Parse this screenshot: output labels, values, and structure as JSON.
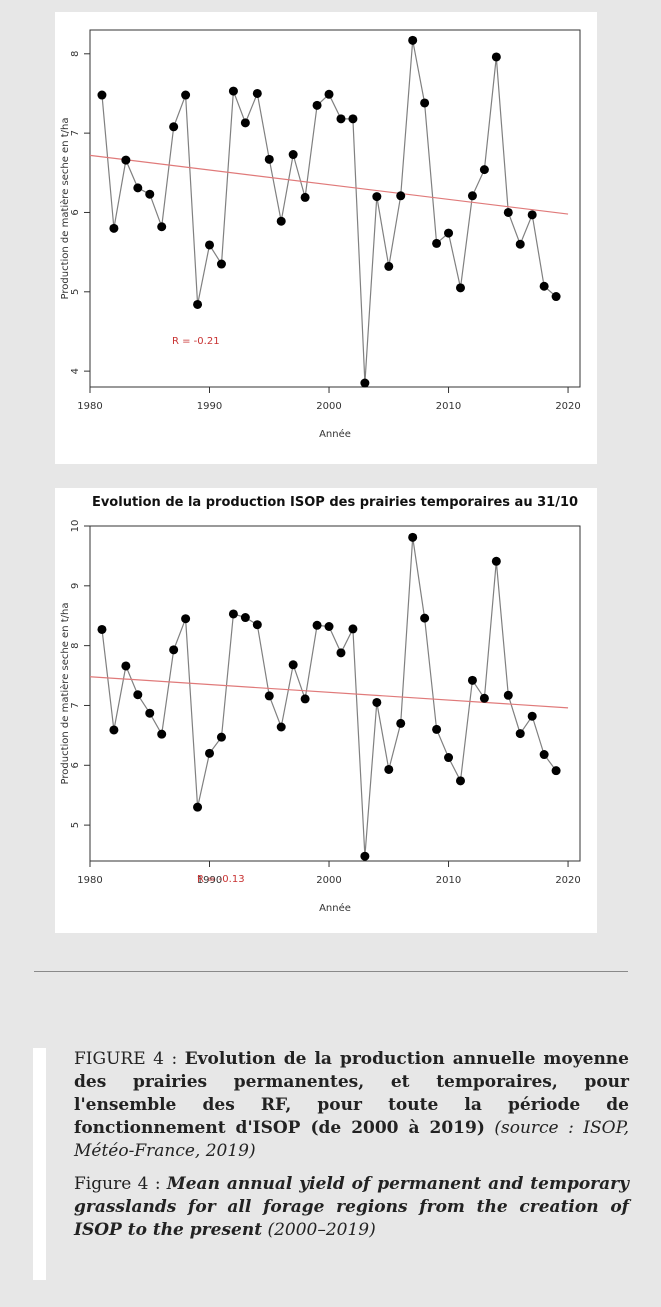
{
  "chart_data": [
    {
      "type": "line",
      "title": "",
      "xlabel": "Année",
      "ylabel": "Production de matière seche en t/ha",
      "xlim": [
        1980,
        2021
      ],
      "ylim": [
        3.8,
        8.3
      ],
      "xticks": [
        1980,
        1990,
        2000,
        2010,
        2020
      ],
      "yticks": [
        4,
        5,
        6,
        7,
        8
      ],
      "x": [
        1981,
        1982,
        1983,
        1984,
        1985,
        1986,
        1987,
        1988,
        1989,
        1990,
        1991,
        1992,
        1993,
        1994,
        1995,
        1996,
        1997,
        1998,
        1999,
        2000,
        2001,
        2002,
        2003,
        2004,
        2005,
        2006,
        2007,
        2008,
        2009,
        2010,
        2011,
        2012,
        2013,
        2014,
        2015,
        2016,
        2017,
        2018,
        2019
      ],
      "series": [
        {
          "values": [
            7.48,
            5.8,
            6.66,
            6.31,
            6.23,
            5.82,
            7.08,
            7.48,
            4.84,
            5.59,
            5.35,
            7.53,
            7.13,
            7.5,
            6.67,
            5.89,
            6.73,
            6.19,
            7.35,
            7.49,
            7.18,
            7.18,
            3.85,
            6.2,
            5.32,
            6.21,
            8.17,
            7.38,
            5.61,
            5.74,
            5.05,
            6.21,
            6.54,
            7.96,
            6.0,
            5.6,
            5.97,
            5.07,
            4.94
          ]
        }
      ],
      "trend": {
        "start": [
          1980,
          6.72
        ],
        "end": [
          2020,
          5.98
        ]
      },
      "annotation": "R = -0.21",
      "colors": {
        "series": "#808080",
        "points": "#000000",
        "trend": "#e07a7a",
        "annotation": "#c83232"
      },
      "grid": false
    },
    {
      "type": "line",
      "title": "Evolution de la production ISOP des prairies temporaires au 31/10",
      "xlabel": "Année",
      "ylabel": "Production de matière seche en t/ha",
      "xlim": [
        1980,
        2021
      ],
      "ylim": [
        4.4,
        10.0
      ],
      "xticks": [
        1980,
        1990,
        2000,
        2010,
        2020
      ],
      "yticks": [
        5,
        6,
        7,
        8,
        9,
        10
      ],
      "x": [
        1981,
        1982,
        1983,
        1984,
        1985,
        1986,
        1987,
        1988,
        1989,
        1990,
        1991,
        1992,
        1993,
        1994,
        1995,
        1996,
        1997,
        1998,
        1999,
        2000,
        2001,
        2002,
        2003,
        2004,
        2005,
        2006,
        2007,
        2008,
        2009,
        2010,
        2011,
        2012,
        2013,
        2014,
        2015,
        2016,
        2017,
        2018,
        2019
      ],
      "series": [
        {
          "values": [
            8.27,
            6.59,
            7.66,
            7.18,
            6.87,
            6.52,
            7.93,
            8.45,
            5.3,
            6.2,
            6.47,
            8.53,
            8.47,
            8.35,
            7.16,
            6.64,
            7.68,
            7.11,
            8.34,
            8.32,
            7.88,
            8.28,
            4.48,
            7.05,
            5.93,
            6.7,
            9.81,
            8.46,
            6.6,
            6.13,
            5.74,
            7.42,
            7.12,
            9.41,
            7.17,
            6.53,
            6.82,
            6.18,
            5.91
          ]
        }
      ],
      "trend": {
        "start": [
          1980,
          7.48
        ],
        "end": [
          2020,
          6.96
        ]
      },
      "annotation": "R = -0.13",
      "colors": {
        "series": "#808080",
        "points": "#000000",
        "trend": "#e07a7a",
        "annotation": "#c83232"
      },
      "grid": false
    }
  ],
  "caption": {
    "fr_prefix": "FIGURE 4 : ",
    "fr_bold": "Evolution de la production annuelle moyenne des prairies permanentes, et temporaires, pour l'ensemble des RF, pour toute la période de fonctionnement d'ISOP (de 2000 à 2019)",
    "fr_source": " (source : ISOP, Météo-France, 2019)",
    "en_prefix": "Figure 4 : ",
    "en_bolditalic": "Mean annual yield of permanent and temporary grasslands for all forage regions from the creation of ISOP to the present",
    "en_suffix": " (2000–2019)"
  }
}
